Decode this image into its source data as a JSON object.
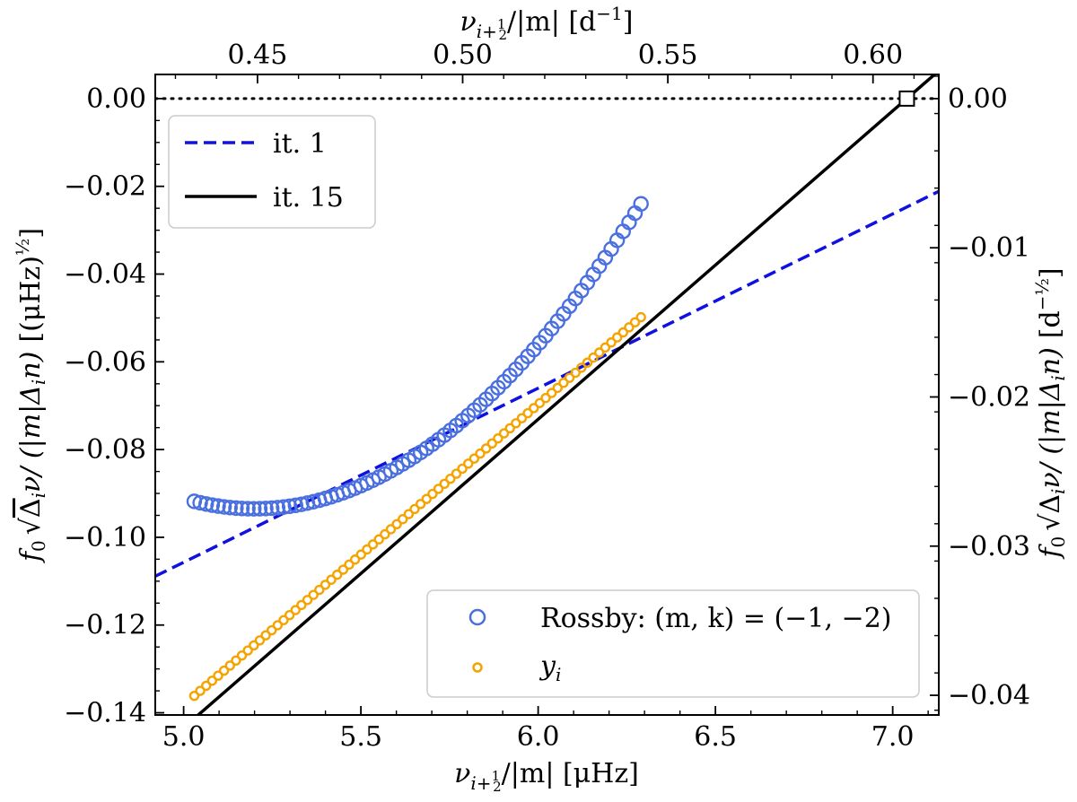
{
  "chart_data": {
    "type": "scatter",
    "xlabel": "ν_{i+½}/|m| [μHz]",
    "xlabel_parts": {
      "nu": "ν",
      "sub": "i+",
      "half_num": "1",
      "half_den": "2",
      "rest": "/|m| [μHz]"
    },
    "xlabel_top": "ν_{i+½}/|m| [d⁻¹]",
    "xlabel_top_parts": {
      "nu": "ν",
      "sub": "i+",
      "half_num": "1",
      "half_den": "2",
      "rest": "/|m| [d",
      "exp": "−1",
      "close": "]"
    },
    "ylabel": "f0 √(Δiν/(|m|Δin)) [(μHz)^½]",
    "ylabel_parts": {
      "f": "f",
      "f_sub": "0",
      "root": "Δ",
      "root_i": "i",
      "root_nu": "ν/ (|m|Δ",
      "root_i2": "i",
      "root_n": "n)",
      "unit": "[(μHz)",
      "exp": "½",
      "close": "]"
    },
    "ylabel_right": "f0 √(Δiν/(|m|Δin)) [d^-½]",
    "ylabel_right_parts": {
      "f": "f",
      "f_sub": "0",
      "root": "Δ",
      "root_i": "i",
      "root_nu": "ν/ (|m|Δ",
      "root_i2": "i",
      "root_n": "n)",
      "unit": "[d",
      "exp": "−½",
      "close": "]"
    },
    "xlim": [
      4.92,
      7.13
    ],
    "ylim": [
      -0.1405,
      0.0055
    ],
    "ylim_right": [
      -0.04132,
      0.00162
    ],
    "x_ticks": [
      "5.0",
      "5.5",
      "6.0",
      "6.5",
      "7.0"
    ],
    "x_tick_values": [
      5.0,
      5.5,
      6.0,
      6.5,
      7.0
    ],
    "x_top_ticks": [
      "0.45",
      "0.50",
      "0.55",
      "0.60"
    ],
    "x_top_tick_values": [
      0.45,
      0.5,
      0.55,
      0.6
    ],
    "y_ticks": [
      "0.00",
      "−0.02",
      "−0.04",
      "−0.06",
      "−0.08",
      "−0.10",
      "−0.12",
      "−0.14"
    ],
    "y_tick_values": [
      0.0,
      -0.02,
      -0.04,
      -0.06,
      -0.08,
      -0.1,
      -0.12,
      -0.14
    ],
    "y_right_ticks": [
      "0.00",
      "−0.01",
      "−0.02",
      "−0.03",
      "−0.04"
    ],
    "y_right_tick_values": [
      0.0,
      -0.01,
      -0.02,
      -0.03,
      -0.04
    ],
    "grid": false,
    "reference_line": {
      "y": 0.0,
      "style": "dotted",
      "color": "#000000"
    },
    "marker_square": {
      "x": 7.04,
      "y": 0.0
    },
    "series": [
      {
        "name": "it. 1",
        "kind": "line",
        "style": "dashed",
        "color": "#1010e0",
        "slope": 0.0397,
        "intercept": -0.3042
      },
      {
        "name": "it. 15",
        "kind": "line",
        "style": "solid",
        "color": "#000000",
        "slope": 0.0703,
        "intercept": -0.4949
      },
      {
        "name": "Rossby: (m, k) = (−1, −2)",
        "kind": "scatter",
        "marker": "open-circle-large",
        "color": "#4a6fdf",
        "x_start": 5.03,
        "x_end": 6.29,
        "count": 76,
        "curve": {
          "a": 0.0585,
          "b": 5.2,
          "c": -0.0935
        }
      },
      {
        "name": "y_i",
        "name_parts": {
          "base": "y",
          "sub": "i"
        },
        "kind": "scatter",
        "marker": "open-circle-small",
        "color": "#f5a300",
        "x_start": 5.03,
        "x_end": 6.29,
        "count": 76,
        "slope": 0.0685,
        "intercept": -0.4807
      }
    ],
    "legends": [
      {
        "position": "upper-left",
        "entries": [
          "it. 1",
          "it. 15"
        ]
      },
      {
        "position": "lower-right",
        "entries": [
          "Rossby: (m, k) = (−1, −2)",
          "y_i"
        ]
      }
    ]
  }
}
